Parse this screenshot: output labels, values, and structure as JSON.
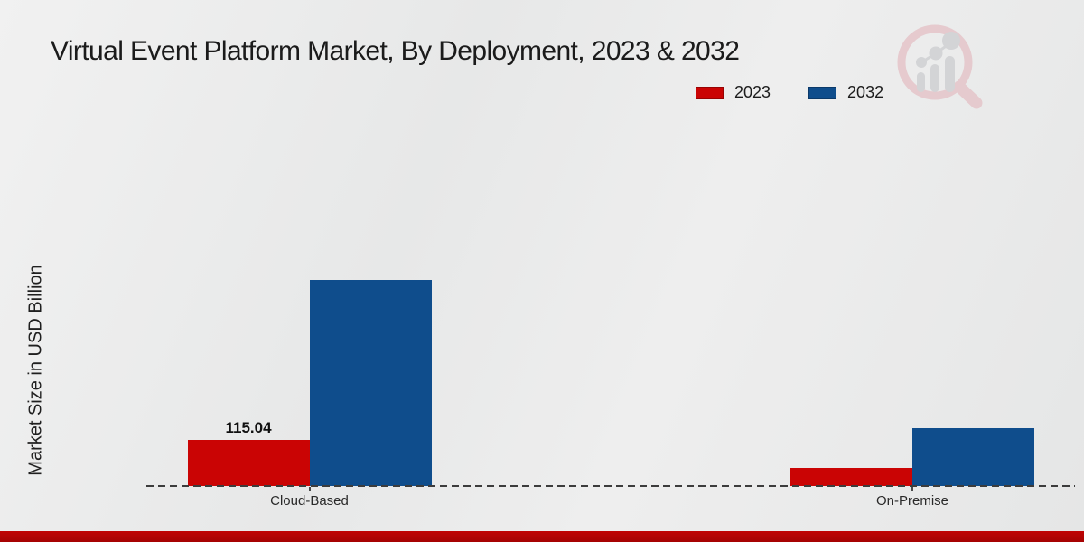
{
  "page": {
    "background": "#e8e9e9",
    "footer_bar_color": "#c00404"
  },
  "chart_data": {
    "type": "bar",
    "title": "Virtual Event Platform Market, By Deployment, 2023 & 2032",
    "ylabel": "Market Size in USD Billion",
    "xlabel": "",
    "categories": [
      "Cloud-Based",
      "On-Premise"
    ],
    "series": [
      {
        "name": "2023",
        "color": "#ca0404",
        "values": [
          115.04,
          46
        ]
      },
      {
        "name": "2032",
        "color": "#0f4d8c",
        "values": [
          512,
          143
        ]
      }
    ],
    "bar_labels": [
      {
        "series_index": 0,
        "category_index": 0,
        "text": "115.04"
      }
    ],
    "ylim": [
      0,
      560
    ],
    "grid": false,
    "legend_position": "upper-right",
    "baseline_style": "dashed"
  },
  "logo": {
    "name": "magnifier-bar-chart-watermark"
  }
}
